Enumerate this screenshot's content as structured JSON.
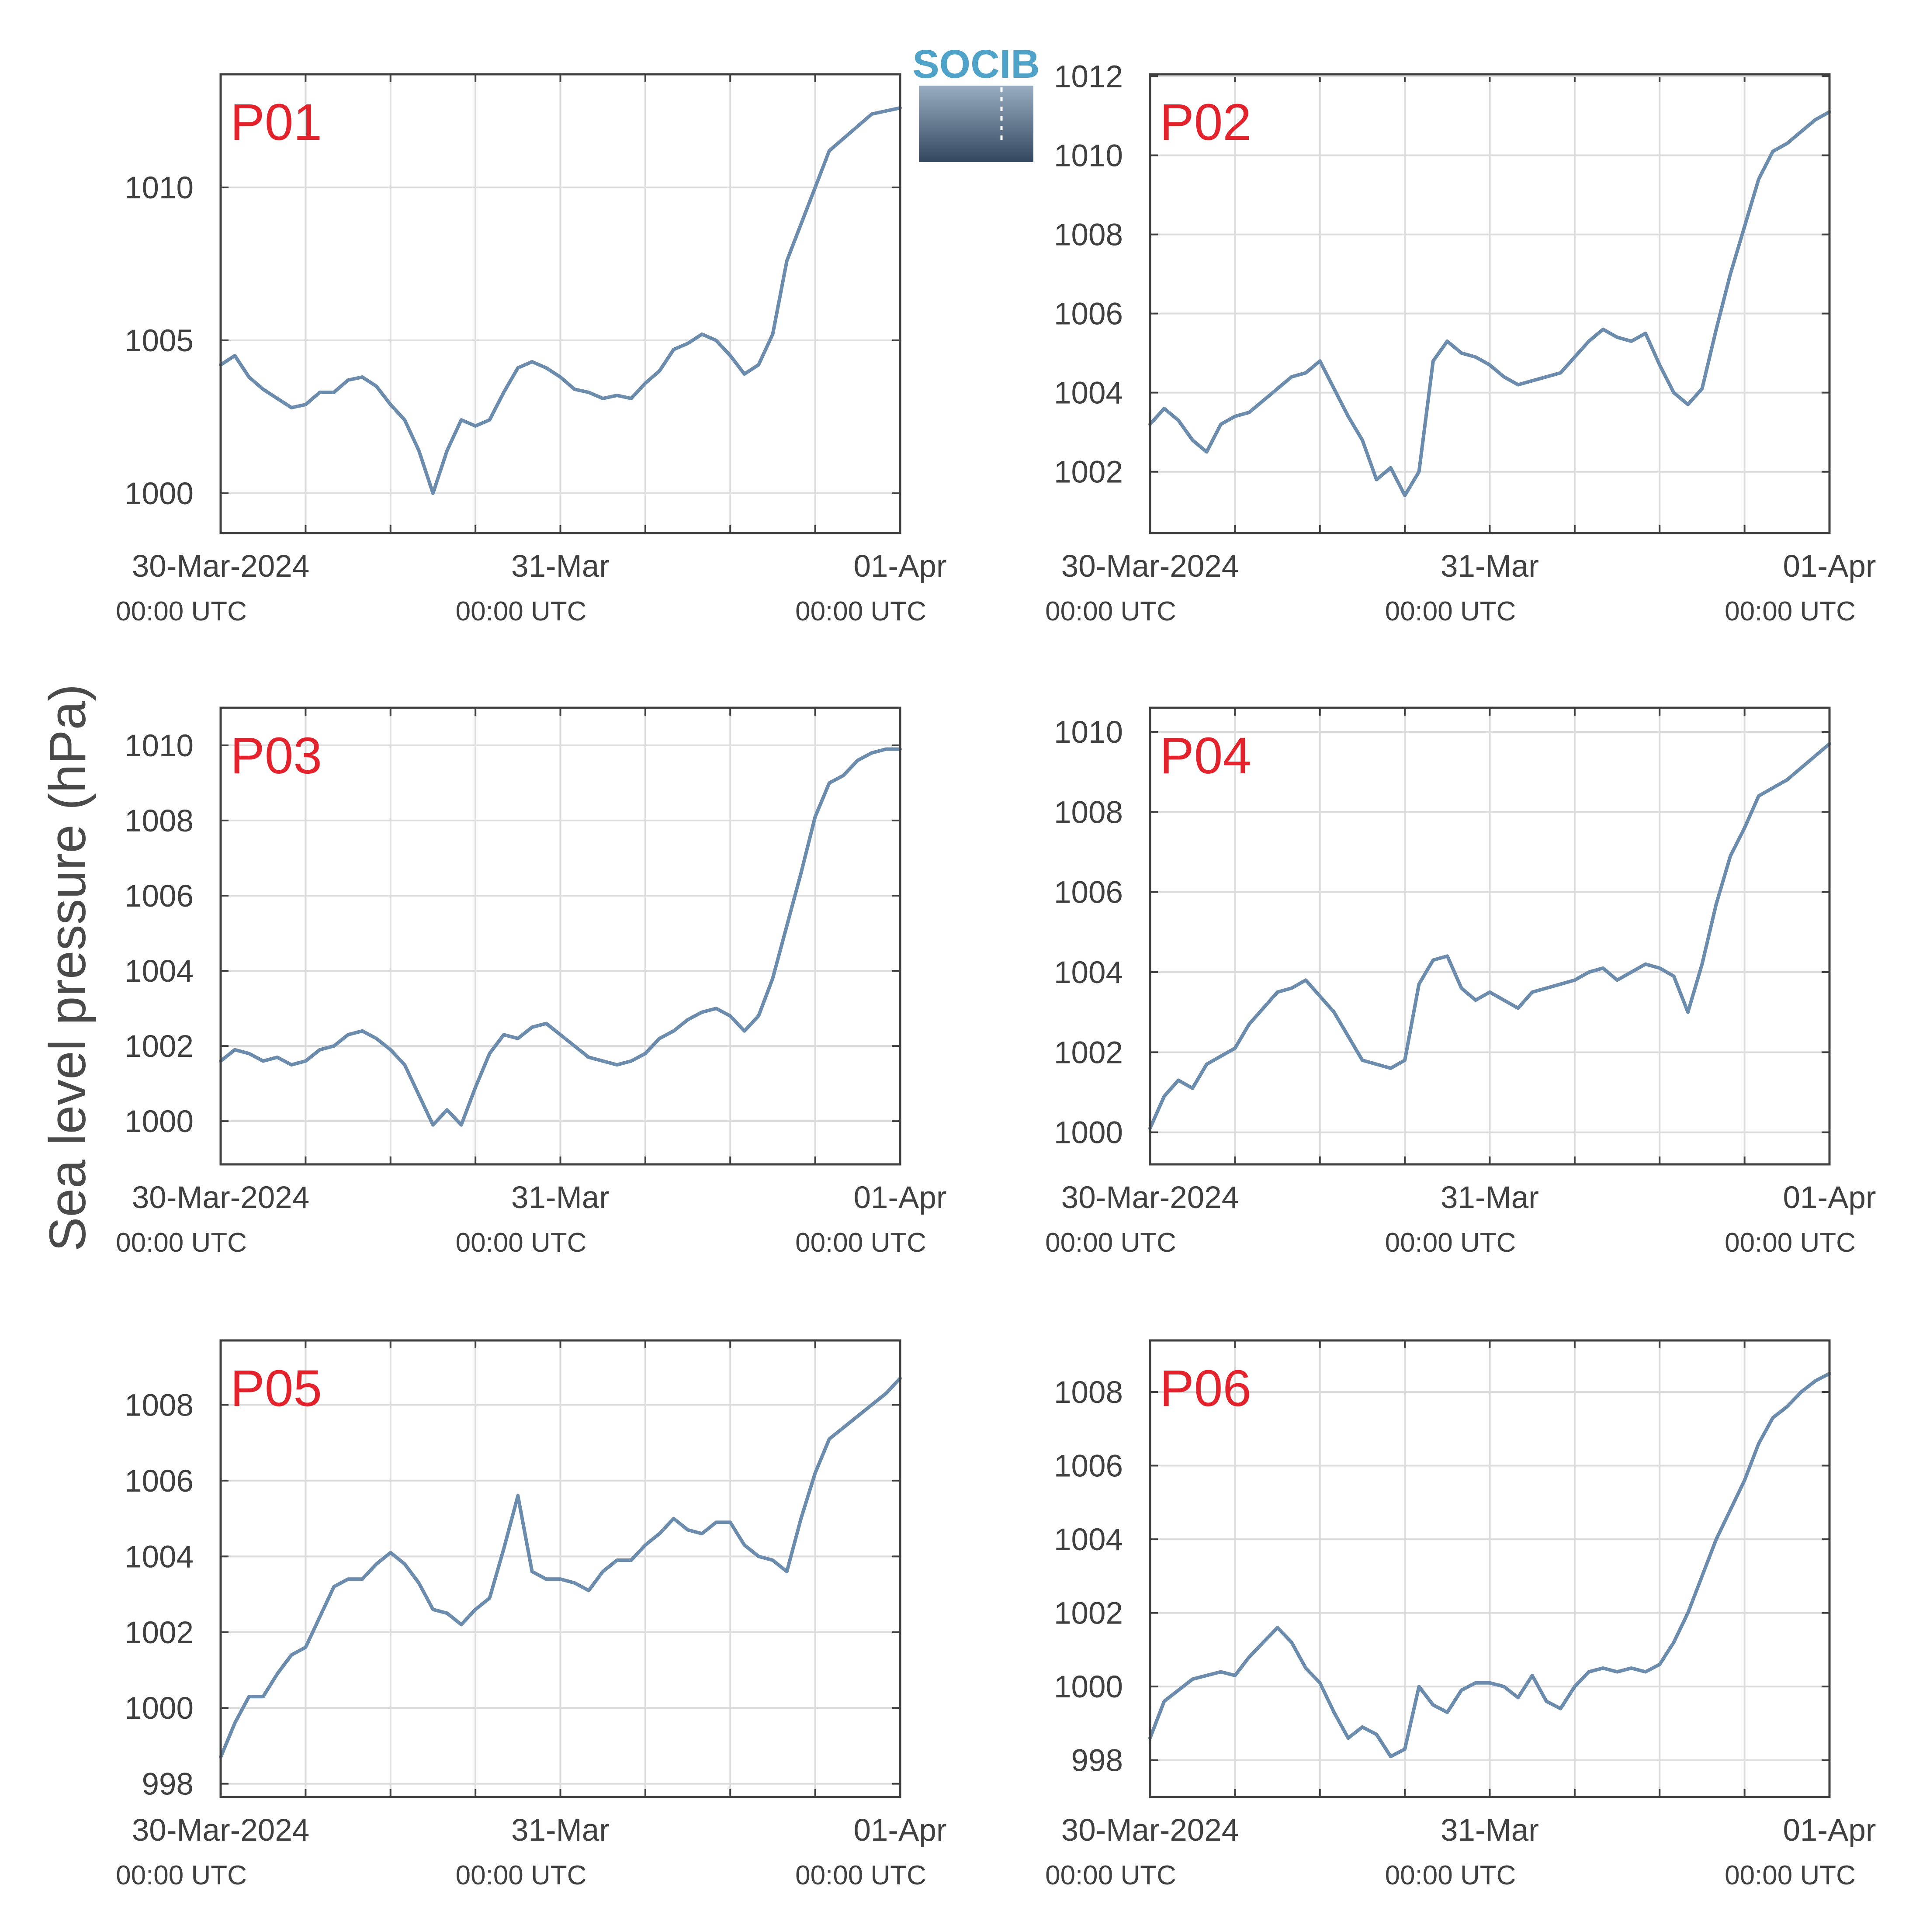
{
  "figure": {
    "ylabel": "Sea level pressure (hPa)",
    "logo_text": "SOCIB",
    "series_color": "#6b8cad",
    "label_color": "#e3222b"
  },
  "chart_data": [
    {
      "type": "line",
      "panel": "P01",
      "x_tick_labels": [
        "30-Mar-2024",
        "31-Mar",
        "01-Apr"
      ],
      "x_tick_sublabels": [
        "00:00 UTC",
        "00:00 UTC",
        "00:00 UTC"
      ],
      "xlim_hours": [
        0,
        48
      ],
      "ylim": [
        998.7,
        1013.7
      ],
      "yticks": [
        1000,
        1005,
        1010
      ],
      "series": [
        {
          "x": [
            0,
            1,
            2,
            3,
            4,
            5,
            6,
            7,
            8,
            9,
            10,
            11,
            12,
            13,
            14,
            15,
            16,
            17,
            18,
            19,
            20,
            21,
            22,
            23,
            24,
            25,
            26,
            27,
            28,
            29,
            30,
            31,
            32,
            33,
            34,
            35,
            36,
            37,
            38,
            39,
            40,
            41,
            42,
            43,
            44,
            45,
            46,
            47,
            48
          ],
          "y": [
            1004.2,
            1004.5,
            1003.8,
            1003.4,
            1003.1,
            1002.8,
            1002.9,
            1003.3,
            1003.3,
            1003.7,
            1003.8,
            1003.5,
            1002.9,
            1002.4,
            1001.4,
            1000.0,
            1001.4,
            1002.4,
            1002.2,
            1002.4,
            1003.3,
            1004.1,
            1004.3,
            1004.1,
            1003.8,
            1003.4,
            1003.3,
            1003.1,
            1003.2,
            1003.1,
            1003.6,
            1004.0,
            1004.7,
            1004.9,
            1005.2,
            1005.0,
            1004.5,
            1003.9,
            1004.2,
            1005.2,
            1007.6,
            1008.8,
            1010.0,
            1011.2,
            1011.6,
            1012.0,
            1012.4,
            1012.5,
            1012.6
          ]
        }
      ]
    },
    {
      "type": "line",
      "panel": "P02",
      "x_tick_labels": [
        "30-Mar-2024",
        "31-Mar",
        "01-Apr"
      ],
      "x_tick_sublabels": [
        "00:00 UTC",
        "00:00 UTC",
        "00:00 UTC"
      ],
      "xlim_hours": [
        0,
        48
      ],
      "ylim": [
        1000.45,
        1012.05
      ],
      "yticks": [
        1002,
        1004,
        1006,
        1008,
        1010,
        1012
      ],
      "series": [
        {
          "x": [
            0,
            1,
            2,
            3,
            4,
            5,
            6,
            7,
            8,
            9,
            10,
            11,
            12,
            13,
            14,
            15,
            16,
            17,
            18,
            19,
            20,
            21,
            22,
            23,
            24,
            25,
            26,
            27,
            28,
            29,
            30,
            31,
            32,
            33,
            34,
            35,
            36,
            37,
            38,
            39,
            40,
            41,
            42,
            43,
            44,
            45,
            46,
            47,
            48
          ],
          "y": [
            1003.2,
            1003.6,
            1003.3,
            1002.8,
            1002.5,
            1003.2,
            1003.4,
            1003.5,
            1003.8,
            1004.1,
            1004.4,
            1004.5,
            1004.8,
            1004.1,
            1003.4,
            1002.8,
            1001.8,
            1002.1,
            1001.4,
            1002.0,
            1004.8,
            1005.3,
            1005.0,
            1004.9,
            1004.7,
            1004.4,
            1004.2,
            1004.3,
            1004.4,
            1004.5,
            1004.9,
            1005.3,
            1005.6,
            1005.4,
            1005.3,
            1005.5,
            1004.7,
            1004.0,
            1003.7,
            1004.1,
            1005.6,
            1007.0,
            1008.2,
            1009.4,
            1010.1,
            1010.3,
            1010.6,
            1010.9,
            1011.1
          ]
        }
      ]
    },
    {
      "type": "line",
      "panel": "P03",
      "x_tick_labels": [
        "30-Mar-2024",
        "31-Mar",
        "01-Apr"
      ],
      "x_tick_sublabels": [
        "00:00 UTC",
        "00:00 UTC",
        "00:00 UTC"
      ],
      "xlim_hours": [
        0,
        48
      ],
      "ylim": [
        998.85,
        1011.0
      ],
      "yticks": [
        1000,
        1002,
        1004,
        1006,
        1008,
        1010
      ],
      "series": [
        {
          "x": [
            0,
            1,
            2,
            3,
            4,
            5,
            6,
            7,
            8,
            9,
            10,
            11,
            12,
            13,
            14,
            15,
            16,
            17,
            18,
            19,
            20,
            21,
            22,
            23,
            24,
            25,
            26,
            27,
            28,
            29,
            30,
            31,
            32,
            33,
            34,
            35,
            36,
            37,
            38,
            39,
            40,
            41,
            42,
            43,
            44,
            45,
            46,
            47,
            48
          ],
          "y": [
            1001.6,
            1001.9,
            1001.8,
            1001.6,
            1001.7,
            1001.5,
            1001.6,
            1001.9,
            1002.0,
            1002.3,
            1002.4,
            1002.2,
            1001.9,
            1001.5,
            1000.7,
            999.9,
            1000.3,
            999.9,
            1000.9,
            1001.8,
            1002.3,
            1002.2,
            1002.5,
            1002.6,
            1002.3,
            1002.0,
            1001.7,
            1001.6,
            1001.5,
            1001.6,
            1001.8,
            1002.2,
            1002.4,
            1002.7,
            1002.9,
            1003.0,
            1002.8,
            1002.4,
            1002.8,
            1003.8,
            1005.2,
            1006.6,
            1008.1,
            1009.0,
            1009.2,
            1009.6,
            1009.8,
            1009.9,
            1009.9
          ]
        }
      ]
    },
    {
      "type": "line",
      "panel": "P04",
      "x_tick_labels": [
        "30-Mar-2024",
        "31-Mar",
        "01-Apr"
      ],
      "x_tick_sublabels": [
        "00:00 UTC",
        "00:00 UTC",
        "00:00 UTC"
      ],
      "xlim_hours": [
        0,
        48
      ],
      "ylim": [
        999.2,
        1010.6
      ],
      "yticks": [
        1000,
        1002,
        1004,
        1006,
        1008,
        1010
      ],
      "series": [
        {
          "x": [
            0,
            1,
            2,
            3,
            4,
            5,
            6,
            7,
            8,
            9,
            10,
            11,
            12,
            13,
            14,
            15,
            16,
            17,
            18,
            19,
            20,
            21,
            22,
            23,
            24,
            25,
            26,
            27,
            28,
            29,
            30,
            31,
            32,
            33,
            34,
            35,
            36,
            37,
            38,
            39,
            40,
            41,
            42,
            43,
            44,
            45,
            46,
            47,
            48
          ],
          "y": [
            1000.1,
            1000.9,
            1001.3,
            1001.1,
            1001.7,
            1001.9,
            1002.1,
            1002.7,
            1003.1,
            1003.5,
            1003.6,
            1003.8,
            1003.4,
            1003.0,
            1002.4,
            1001.8,
            1001.7,
            1001.6,
            1001.8,
            1003.7,
            1004.3,
            1004.4,
            1003.6,
            1003.3,
            1003.5,
            1003.3,
            1003.1,
            1003.5,
            1003.6,
            1003.7,
            1003.8,
            1004.0,
            1004.1,
            1003.8,
            1004.0,
            1004.2,
            1004.1,
            1003.9,
            1003.0,
            1004.2,
            1005.7,
            1006.9,
            1007.6,
            1008.4,
            1008.6,
            1008.8,
            1009.1,
            1009.4,
            1009.7
          ]
        }
      ]
    },
    {
      "type": "line",
      "panel": "P05",
      "x_tick_labels": [
        "30-Mar-2024",
        "31-Mar",
        "01-Apr"
      ],
      "x_tick_sublabels": [
        "00:00 UTC",
        "00:00 UTC",
        "00:00 UTC"
      ],
      "xlim_hours": [
        0,
        48
      ],
      "ylim": [
        997.65,
        1009.7
      ],
      "yticks": [
        998,
        1000,
        1002,
        1004,
        1006,
        1008
      ],
      "series": [
        {
          "x": [
            0,
            1,
            2,
            3,
            4,
            5,
            6,
            7,
            8,
            9,
            10,
            11,
            12,
            13,
            14,
            15,
            16,
            17,
            18,
            19,
            20,
            21,
            22,
            23,
            24,
            25,
            26,
            27,
            28,
            29,
            30,
            31,
            32,
            33,
            34,
            35,
            36,
            37,
            38,
            39,
            40,
            41,
            42,
            43,
            44,
            45,
            46,
            47,
            48
          ],
          "y": [
            998.7,
            999.6,
            1000.3,
            1000.3,
            1000.9,
            1001.4,
            1001.6,
            1002.4,
            1003.2,
            1003.4,
            1003.4,
            1003.8,
            1004.1,
            1003.8,
            1003.3,
            1002.6,
            1002.5,
            1002.2,
            1002.6,
            1002.9,
            1004.2,
            1005.6,
            1003.6,
            1003.4,
            1003.4,
            1003.3,
            1003.1,
            1003.6,
            1003.9,
            1003.9,
            1004.3,
            1004.6,
            1005.0,
            1004.7,
            1004.6,
            1004.9,
            1004.9,
            1004.3,
            1004.0,
            1003.9,
            1003.6,
            1005.0,
            1006.2,
            1007.1,
            1007.4,
            1007.7,
            1008.0,
            1008.3,
            1008.7
          ]
        }
      ]
    },
    {
      "type": "line",
      "panel": "P06",
      "x_tick_labels": [
        "30-Mar-2024",
        "31-Mar",
        "01-Apr"
      ],
      "x_tick_sublabels": [
        "00:00 UTC",
        "00:00 UTC",
        "00:00 UTC"
      ],
      "xlim_hours": [
        0,
        48
      ],
      "ylim": [
        997.0,
        1009.4
      ],
      "yticks": [
        998,
        1000,
        1002,
        1004,
        1006,
        1008
      ],
      "series": [
        {
          "x": [
            0,
            1,
            2,
            3,
            4,
            5,
            6,
            7,
            8,
            9,
            10,
            11,
            12,
            13,
            14,
            15,
            16,
            17,
            18,
            19,
            20,
            21,
            22,
            23,
            24,
            25,
            26,
            27,
            28,
            29,
            30,
            31,
            32,
            33,
            34,
            35,
            36,
            37,
            38,
            39,
            40,
            41,
            42,
            43,
            44,
            45,
            46,
            47,
            48
          ],
          "y": [
            998.6,
            999.6,
            999.9,
            1000.2,
            1000.3,
            1000.4,
            1000.3,
            1000.8,
            1001.2,
            1001.6,
            1001.2,
            1000.5,
            1000.1,
            999.3,
            998.6,
            998.9,
            998.7,
            998.1,
            998.3,
            1000.0,
            999.5,
            999.3,
            999.9,
            1000.1,
            1000.1,
            1000.0,
            999.7,
            1000.3,
            999.6,
            999.4,
            1000.0,
            1000.4,
            1000.5,
            1000.4,
            1000.5,
            1000.4,
            1000.6,
            1001.2,
            1002.0,
            1003.0,
            1004.0,
            1004.8,
            1005.6,
            1006.6,
            1007.3,
            1007.6,
            1008.0,
            1008.3,
            1008.5
          ]
        }
      ]
    }
  ]
}
